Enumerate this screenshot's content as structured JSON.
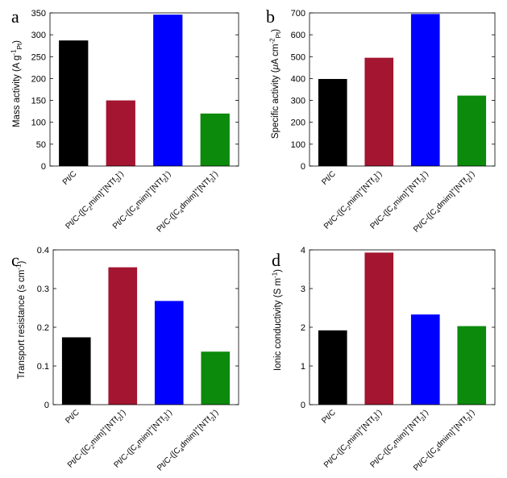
{
  "colors": {
    "black": "#000000",
    "crimson": "#A31530",
    "blue": "#0000FF",
    "green": "#0B8A0B"
  },
  "chart_data": [
    {
      "panel": "a",
      "type": "bar",
      "ylabel": "Mass activity (A g⁻¹Pt)",
      "ylabel_parts": [
        {
          "t": "Mass activity (A g"
        },
        {
          "t": "-1",
          "s": "sup"
        },
        {
          "t": "Pt",
          "s": "sub"
        },
        {
          "t": ")"
        }
      ],
      "ylim": [
        0,
        350
      ],
      "yticks": [
        0,
        50,
        100,
        150,
        200,
        250,
        300,
        350
      ],
      "categories": [
        [
          {
            "t": "Pt/C"
          }
        ],
        [
          {
            "t": "Pt/C-([C"
          },
          {
            "t": "2",
            "s": "sub"
          },
          {
            "t": "mim]"
          },
          {
            "t": "+",
            "s": "sup"
          },
          {
            "t": "[NTf"
          },
          {
            "t": "2",
            "s": "sub"
          },
          {
            "t": "]"
          },
          {
            "t": "-",
            "s": "sup"
          },
          {
            "t": ")"
          }
        ],
        [
          {
            "t": "Pt/C-([C"
          },
          {
            "t": "4",
            "s": "sub"
          },
          {
            "t": "mim]"
          },
          {
            "t": "+",
            "s": "sup"
          },
          {
            "t": "[NTf"
          },
          {
            "t": "2",
            "s": "sub"
          },
          {
            "t": "]"
          },
          {
            "t": "-",
            "s": "sup"
          },
          {
            "t": ")"
          }
        ],
        [
          {
            "t": "Pt/C-([C"
          },
          {
            "t": "4",
            "s": "sub"
          },
          {
            "t": "dmim]"
          },
          {
            "t": "+",
            "s": "sup"
          },
          {
            "t": "[NTf"
          },
          {
            "t": "2",
            "s": "sub"
          },
          {
            "t": "]"
          },
          {
            "t": "-",
            "s": "sup"
          },
          {
            "t": ")"
          }
        ]
      ],
      "values": [
        287,
        150,
        346,
        120
      ]
    },
    {
      "panel": "b",
      "type": "bar",
      "ylabel": "Specific activity (μA cm⁻²Pt)",
      "ylabel_parts": [
        {
          "t": "Specific activity ("
        },
        {
          "t": "μ",
          "italic": true
        },
        {
          "t": "A cm"
        },
        {
          "t": "-2",
          "s": "sup"
        },
        {
          "t": "Pt",
          "s": "sub"
        },
        {
          "t": ")"
        }
      ],
      "ylim": [
        0,
        700
      ],
      "yticks": [
        0,
        100,
        200,
        300,
        400,
        500,
        600,
        700
      ],
      "categories": [
        [
          {
            "t": "Pt/C"
          }
        ],
        [
          {
            "t": "Pt/C-([C"
          },
          {
            "t": "2",
            "s": "sub"
          },
          {
            "t": "mim]"
          },
          {
            "t": "+",
            "s": "sup"
          },
          {
            "t": "[NTf"
          },
          {
            "t": "2",
            "s": "sub"
          },
          {
            "t": "]"
          },
          {
            "t": "-",
            "s": "sup"
          },
          {
            "t": ")"
          }
        ],
        [
          {
            "t": "Pt/C-([C"
          },
          {
            "t": "4",
            "s": "sub"
          },
          {
            "t": "mim]"
          },
          {
            "t": "+",
            "s": "sup"
          },
          {
            "t": "[NTf"
          },
          {
            "t": "2",
            "s": "sub"
          },
          {
            "t": "]"
          },
          {
            "t": "-",
            "s": "sup"
          },
          {
            "t": ")"
          }
        ],
        [
          {
            "t": "Pt/C-([C"
          },
          {
            "t": "4",
            "s": "sub"
          },
          {
            "t": "dmim]"
          },
          {
            "t": "+",
            "s": "sup"
          },
          {
            "t": "[NTf"
          },
          {
            "t": "2",
            "s": "sub"
          },
          {
            "t": "]"
          },
          {
            "t": "-",
            "s": "sup"
          },
          {
            "t": ")"
          }
        ]
      ],
      "values": [
        398,
        495,
        695,
        322
      ]
    },
    {
      "panel": "c",
      "type": "bar",
      "ylabel": "Transport resistance (s cm⁻¹)",
      "ylabel_parts": [
        {
          "t": "Transport resistance (s cm"
        },
        {
          "t": "-1",
          "s": "sup"
        },
        {
          "t": ")"
        }
      ],
      "ylim": [
        0,
        0.4
      ],
      "yticks": [
        0,
        0.1,
        0.2,
        0.3,
        0.4
      ],
      "categories": [
        [
          {
            "t": "Pt/C"
          }
        ],
        [
          {
            "t": "Pt/C-([C"
          },
          {
            "t": "2",
            "s": "sub"
          },
          {
            "t": "mim]"
          },
          {
            "t": "+",
            "s": "sup"
          },
          {
            "t": "[NTf"
          },
          {
            "t": "2",
            "s": "sub"
          },
          {
            "t": "]"
          },
          {
            "t": "-",
            "s": "sup"
          },
          {
            "t": ")"
          }
        ],
        [
          {
            "t": "Pt/C-([C"
          },
          {
            "t": "4",
            "s": "sub"
          },
          {
            "t": "mim]"
          },
          {
            "t": "+",
            "s": "sup"
          },
          {
            "t": "[NTf"
          },
          {
            "t": "2",
            "s": "sub"
          },
          {
            "t": "]"
          },
          {
            "t": "-",
            "s": "sup"
          },
          {
            "t": ")"
          }
        ],
        [
          {
            "t": "Pt/C-([C"
          },
          {
            "t": "4",
            "s": "sub"
          },
          {
            "t": "dmim]"
          },
          {
            "t": "+",
            "s": "sup"
          },
          {
            "t": "[NTf"
          },
          {
            "t": "2",
            "s": "sub"
          },
          {
            "t": "]"
          },
          {
            "t": "-",
            "s": "sup"
          },
          {
            "t": ")"
          }
        ]
      ],
      "values": [
        0.174,
        0.355,
        0.268,
        0.137
      ]
    },
    {
      "panel": "d",
      "type": "bar",
      "ylabel": "Ionic conductivity (S m⁻¹)",
      "ylabel_parts": [
        {
          "t": "Ionic conductivity (S m"
        },
        {
          "t": "-1",
          "s": "sup"
        },
        {
          "t": ")"
        }
      ],
      "ylim": [
        0,
        4
      ],
      "yticks": [
        0,
        1,
        2,
        3,
        4
      ],
      "categories": [
        [
          {
            "t": "Pt/C"
          }
        ],
        [
          {
            "t": "Pt/C-([C"
          },
          {
            "t": "2",
            "s": "sub"
          },
          {
            "t": "mim]"
          },
          {
            "t": "+",
            "s": "sup"
          },
          {
            "t": "[NTf"
          },
          {
            "t": "2",
            "s": "sub"
          },
          {
            "t": "]"
          },
          {
            "t": "-",
            "s": "sup"
          },
          {
            "t": ")"
          }
        ],
        [
          {
            "t": "Pt/C-([C"
          },
          {
            "t": "4",
            "s": "sub"
          },
          {
            "t": "mim]"
          },
          {
            "t": "+",
            "s": "sup"
          },
          {
            "t": "[NTf"
          },
          {
            "t": "2",
            "s": "sub"
          },
          {
            "t": "]"
          },
          {
            "t": "-",
            "s": "sup"
          },
          {
            "t": ")"
          }
        ],
        [
          {
            "t": "Pt/C-([C"
          },
          {
            "t": "4",
            "s": "sub"
          },
          {
            "t": "dmim]"
          },
          {
            "t": "+",
            "s": "sup"
          },
          {
            "t": "[NTf"
          },
          {
            "t": "2",
            "s": "sub"
          },
          {
            "t": "]"
          },
          {
            "t": "-",
            "s": "sup"
          },
          {
            "t": ")"
          }
        ]
      ],
      "values": [
        1.92,
        3.93,
        2.33,
        2.03
      ]
    }
  ]
}
